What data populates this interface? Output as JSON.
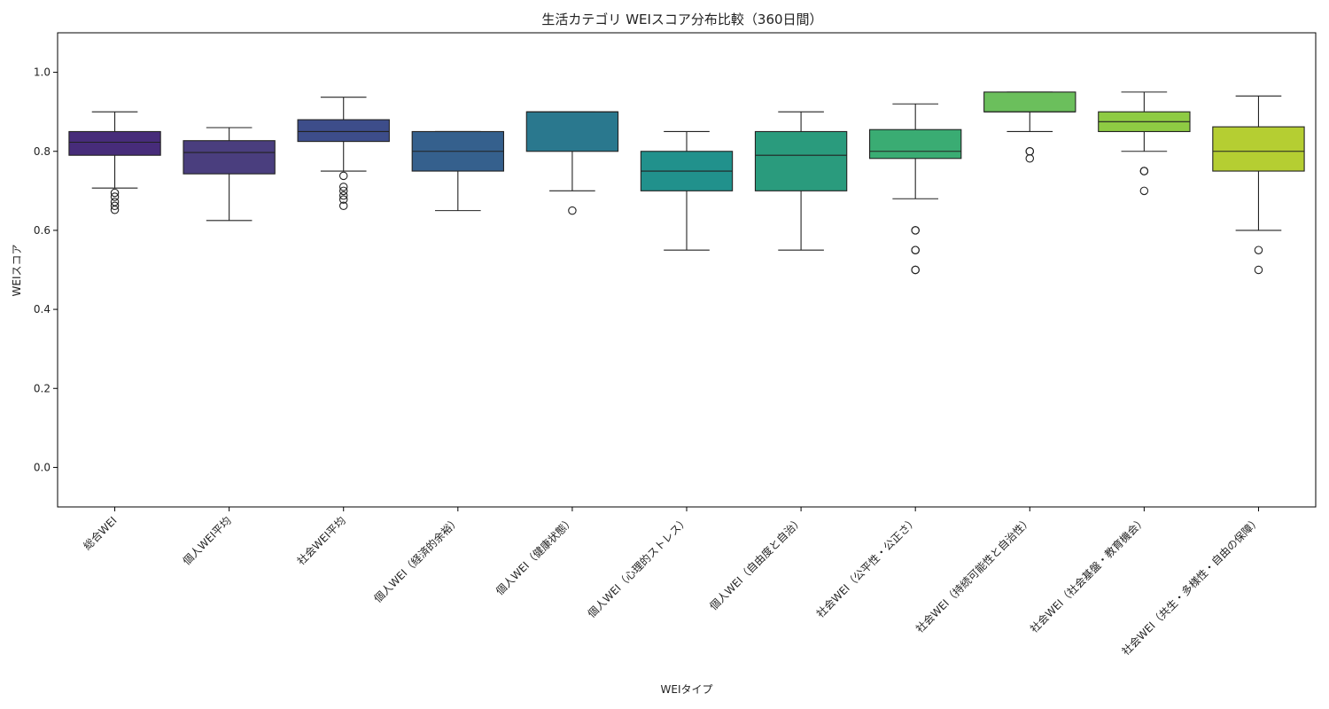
{
  "chart_data": {
    "type": "box",
    "title": "生活カテゴリ WEIスコア分布比較（360日間）",
    "xlabel": "WEIタイプ",
    "ylabel": "WEIスコア",
    "ylim": [
      -0.1,
      1.1
    ],
    "yticks": [
      0.0,
      0.2,
      0.4,
      0.6,
      0.8,
      1.0
    ],
    "ytick_labels": [
      "0.0",
      "0.2",
      "0.4",
      "0.6",
      "0.8",
      "1.0"
    ],
    "grid": false,
    "series": [
      {
        "name": "総合WEI",
        "color": "#472c7a",
        "whisker_low": 0.707,
        "q1": 0.79,
        "median": 0.823,
        "q3": 0.85,
        "whisker_high": 0.9,
        "outliers": [
          0.695,
          0.685,
          0.672,
          0.662,
          0.652
        ]
      },
      {
        "name": "個人WEI平均",
        "color": "#4a3e7e",
        "whisker_low": 0.625,
        "q1": 0.743,
        "median": 0.797,
        "q3": 0.827,
        "whisker_high": 0.86,
        "outliers": []
      },
      {
        "name": "社会WEI平均",
        "color": "#3d4d8a",
        "whisker_low": 0.75,
        "q1": 0.825,
        "median": 0.85,
        "q3": 0.88,
        "whisker_high": 0.937,
        "outliers": [
          0.738,
          0.71,
          0.7,
          0.688,
          0.678,
          0.662
        ]
      },
      {
        "name": "個人WEI（経済的余裕）",
        "color": "#35608d",
        "whisker_low": 0.65,
        "q1": 0.75,
        "median": 0.8,
        "q3": 0.85,
        "whisker_high": 0.85,
        "outliers": []
      },
      {
        "name": "個人WEI（健康状態）",
        "color": "#2a788e",
        "whisker_low": 0.7,
        "q1": 0.8,
        "median": 0.9,
        "q3": 0.9,
        "whisker_high": 0.9,
        "outliers": [
          0.65
        ]
      },
      {
        "name": "個人WEI（心理的ストレス）",
        "color": "#21918c",
        "whisker_low": 0.55,
        "q1": 0.7,
        "median": 0.75,
        "q3": 0.8,
        "whisker_high": 0.85,
        "outliers": []
      },
      {
        "name": "個人WEI（自由度と自治）",
        "color": "#2a9b7d",
        "whisker_low": 0.55,
        "q1": 0.7,
        "median": 0.79,
        "q3": 0.85,
        "whisker_high": 0.9,
        "outliers": []
      },
      {
        "name": "社会WEI（公平性・公正さ）",
        "color": "#3aac73",
        "whisker_low": 0.68,
        "q1": 0.782,
        "median": 0.8,
        "q3": 0.855,
        "whisker_high": 0.92,
        "outliers": [
          0.6,
          0.6,
          0.55,
          0.55,
          0.5,
          0.5
        ]
      },
      {
        "name": "社会WEI（持続可能性と自治性）",
        "color": "#6bbf5c",
        "whisker_low": 0.85,
        "q1": 0.9,
        "median": 0.9,
        "q3": 0.95,
        "whisker_high": 0.95,
        "outliers": [
          0.8,
          0.8,
          0.782
        ]
      },
      {
        "name": "社会WEI（社会基盤・教育機会）",
        "color": "#8ecb43",
        "whisker_low": 0.8,
        "q1": 0.85,
        "median": 0.875,
        "q3": 0.9,
        "whisker_high": 0.95,
        "outliers": [
          0.75,
          0.75,
          0.7
        ]
      },
      {
        "name": "社会WEI（共生・多様性・自由の保障）",
        "color": "#b5ce32",
        "whisker_low": 0.6,
        "q1": 0.75,
        "median": 0.8,
        "q3": 0.862,
        "whisker_high": 0.94,
        "outliers": [
          0.55,
          0.5
        ]
      }
    ]
  }
}
